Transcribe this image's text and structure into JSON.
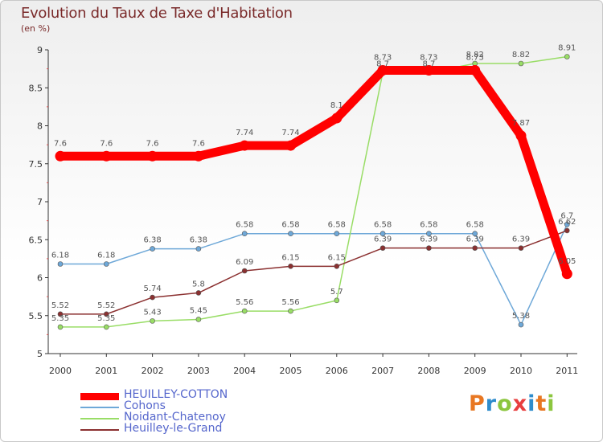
{
  "header": {
    "title": "Evolution du Taux de Taxe d'Habitation",
    "subtitle": "(en %)"
  },
  "logo": {
    "letters": [
      "P",
      "r",
      "o",
      "x",
      "i",
      "t",
      "i"
    ],
    "colors": [
      "#e87722",
      "#2e8ccc",
      "#8cc63f",
      "#e83e3e",
      "#2e8ccc",
      "#e87722",
      "#8cc63f"
    ]
  },
  "chart_data": {
    "type": "line",
    "title": "Evolution du Taux de Taxe d'Habitation",
    "ylabel": "(en %)",
    "xlabel": "",
    "ylim": [
      5,
      9
    ],
    "yticks": [
      "5",
      "5.5",
      "6",
      "6.5",
      "7",
      "7.5",
      "8",
      "8.5",
      "9"
    ],
    "categories": [
      "2000",
      "2001",
      "2002",
      "2003",
      "2004",
      "2005",
      "2006",
      "2007",
      "2008",
      "2009",
      "2010",
      "2011"
    ],
    "series": [
      {
        "name": "HEUILLEY-COTTON",
        "color": "#ff0000",
        "bold": true,
        "values": [
          7.6,
          7.6,
          7.6,
          7.6,
          7.74,
          7.74,
          8.1,
          8.73,
          8.73,
          8.73,
          7.87,
          6.05
        ],
        "labels": [
          "7.6",
          "7.6",
          "7.6",
          "7.6",
          "7.74",
          "7.74",
          "8.1",
          "8.73",
          "8.73",
          "8.73",
          "7.87",
          "6.05"
        ]
      },
      {
        "name": "Cohons",
        "color": "#6ea8d8",
        "bold": false,
        "values": [
          6.18,
          6.18,
          6.38,
          6.38,
          6.58,
          6.58,
          6.58,
          6.58,
          6.58,
          6.58,
          5.38,
          6.7
        ],
        "labels": [
          "6.18",
          "6.18",
          "6.38",
          "6.38",
          "6.58",
          "6.58",
          "6.58",
          "6.58",
          "6.58",
          "6.58",
          "5.38",
          "6.7"
        ]
      },
      {
        "name": "Noidant-Chatenoy",
        "color": "#99dd66",
        "bold": false,
        "values": [
          5.35,
          5.35,
          5.43,
          5.45,
          5.56,
          5.56,
          5.7,
          8.7,
          8.7,
          8.82,
          8.82,
          8.91
        ],
        "labels": [
          "5.35",
          "5.35",
          "5.43",
          "5.45",
          "5.56",
          "5.56",
          "5.7",
          "8.7",
          "8.7",
          "8.82",
          "8.82",
          "8.91"
        ]
      },
      {
        "name": "Heuilley-le-Grand",
        "color": "#8b3030",
        "bold": false,
        "values": [
          5.52,
          5.52,
          5.74,
          5.8,
          6.09,
          6.15,
          6.15,
          6.39,
          6.39,
          6.39,
          6.39,
          6.62
        ],
        "labels": [
          "5.52",
          "5.52",
          "5.74",
          "5.8",
          "6.09",
          "6.15",
          "6.15",
          "6.39",
          "6.39",
          "6.39",
          "6.39",
          "6.62"
        ]
      }
    ],
    "legend": [
      {
        "name": "HEUILLEY-COTTON",
        "color": "#ff0000"
      },
      {
        "name": "Cohons",
        "color": "#6ea8d8"
      },
      {
        "name": "Noidant-Chatenoy",
        "color": "#99dd66"
      },
      {
        "name": "Heuilley-le-Grand",
        "color": "#8b3030"
      }
    ],
    "legend_position": "bottom-left"
  }
}
